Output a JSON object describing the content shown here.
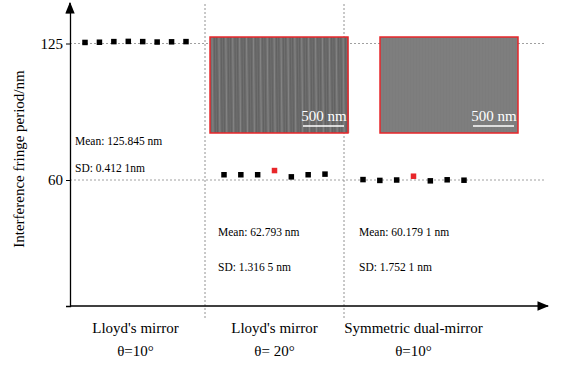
{
  "chart_data": {
    "type": "scatter",
    "y_label": "Interference fringe period/nm",
    "categories": [
      "Lloyd's mirror",
      "Lloyd's mirror",
      "Symmetric dual-mirror"
    ],
    "category_sublabels": [
      "θ=10°",
      "θ= 20°",
      "θ=10°"
    ],
    "ylim": [
      0,
      140
    ],
    "yticks": [
      60,
      125
    ],
    "grid": true,
    "tick_labels": "y",
    "marker": "square",
    "groups": [
      {
        "values": [
          125.5,
          125.6,
          125.9,
          126.0,
          125.9,
          125.7,
          125.8,
          125.9
        ],
        "colors": [
          "#000000",
          "#000000",
          "#000000",
          "#000000",
          "#000000",
          "#000000",
          "#000000",
          "#000000"
        ],
        "annotations": [
          "Mean: 125.845 nm",
          "SD: 0.412 1nm"
        ]
      },
      {
        "values": [
          62.5,
          62.5,
          62.5,
          64.5,
          61.5,
          62.5,
          62.8
        ],
        "colors": [
          "#000000",
          "#000000",
          "#000000",
          "#e8262a",
          "#000000",
          "#000000",
          "#000000"
        ],
        "annotations": [
          "Mean: 62.793 nm",
          "SD: 1.316 5 nm"
        ],
        "scale_bar": "500 nm"
      },
      {
        "values": [
          60.2,
          59.8,
          60.0,
          61.8,
          59.6,
          60.1,
          59.9
        ],
        "colors": [
          "#000000",
          "#000000",
          "#000000",
          "#e8262a",
          "#000000",
          "#000000",
          "#000000"
        ],
        "annotations": [
          "Mean: 60.179 1 nm",
          "SD: 1.752 1 nm"
        ],
        "scale_bar": "500 nm"
      }
    ]
  }
}
